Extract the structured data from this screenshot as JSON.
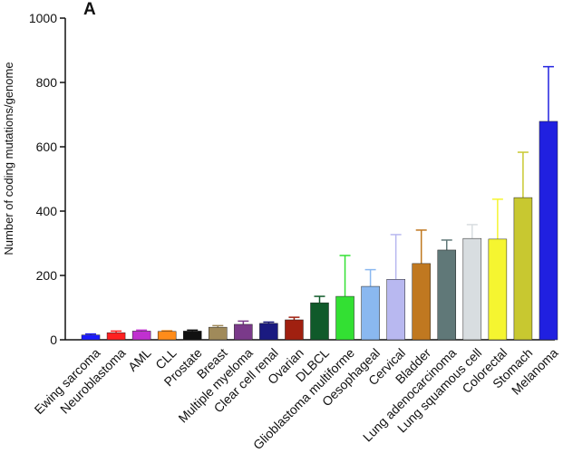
{
  "chart_data": {
    "type": "bar",
    "panel_label": "A",
    "ylabel": "Number of coding mutations/genome",
    "categories": [
      "Ewing sarcoma",
      "Neuroblastoma",
      "AML",
      "CLL",
      "Prostate",
      "Breast",
      "Multiple myeloma",
      "Clear cell renal",
      "Ovarian",
      "DLBCL",
      "Glioblastoma multiforme",
      "Oesophageal",
      "Cervical",
      "Bladder",
      "Lung adenocarcinoma",
      "Lung squamous cell",
      "Colorectal",
      "Stomach",
      "Melanoma"
    ],
    "values": [
      15,
      22,
      27,
      26,
      27,
      39,
      48,
      51,
      62,
      115,
      135,
      166,
      188,
      237,
      279,
      315,
      313,
      442,
      679
    ],
    "errors": [
      3,
      5,
      3,
      2,
      3,
      5,
      10,
      4,
      8,
      20,
      127,
      52,
      139,
      104,
      31,
      43,
      124,
      141,
      170
    ],
    "colors": [
      "#1a1aff",
      "#ff2020",
      "#c030d0",
      "#ff8c1a",
      "#111111",
      "#a08a5a",
      "#7a3a8a",
      "#1a1a80",
      "#a02010",
      "#105a2a",
      "#33e033",
      "#8ab8f0",
      "#b8b8f0",
      "#c07820",
      "#607878",
      "#d8dde0",
      "#f5f530",
      "#c8c830",
      "#2020e0"
    ],
    "ylim": [
      0,
      1000
    ],
    "yticks": [
      0,
      200,
      400,
      600,
      800,
      1000
    ]
  }
}
